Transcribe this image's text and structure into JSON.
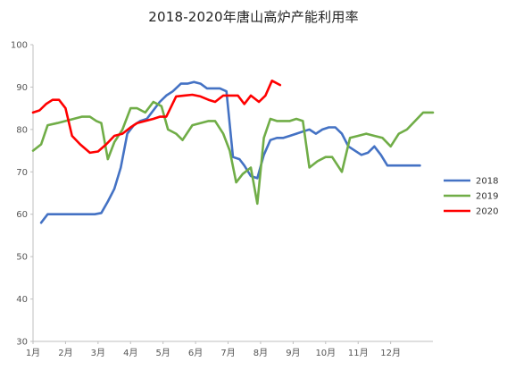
{
  "chart_data": {
    "type": "line",
    "title": "2018-2020年唐山高炉产能利用率",
    "xlabel": "",
    "ylabel": "",
    "ylim": [
      30,
      100
    ],
    "yticks": [
      30,
      40,
      50,
      60,
      70,
      80,
      90,
      100
    ],
    "xlim": [
      1,
      13.3
    ],
    "xticks": [
      1,
      2,
      3,
      4,
      5,
      6,
      7,
      8,
      9,
      10,
      11,
      12
    ],
    "xtick_labels": [
      "1月",
      "2月",
      "3月",
      "4月",
      "5月",
      "6月",
      "7月",
      "8月",
      "9月",
      "10月",
      "11月",
      "12月"
    ],
    "grid": false,
    "legend_position": "right",
    "series": [
      {
        "name": "2018",
        "color": "#4472c4",
        "x": [
          1.25,
          1.45,
          1.7,
          1.95,
          2.2,
          2.45,
          2.7,
          2.9,
          3.1,
          3.3,
          3.5,
          3.7,
          3.9,
          4.1,
          4.3,
          4.5,
          4.7,
          4.9,
          5.1,
          5.3,
          5.55,
          5.75,
          5.95,
          6.15,
          6.35,
          6.55,
          6.75,
          6.95,
          7.15,
          7.35,
          7.5,
          7.7,
          7.9,
          8.1,
          8.3,
          8.5,
          8.7,
          8.9,
          9.1,
          9.3,
          9.5,
          9.7,
          9.9,
          10.1,
          10.3,
          10.5,
          10.7,
          10.9,
          11.1,
          11.3,
          11.5,
          11.7,
          11.9,
          12.1,
          12.3,
          12.5,
          12.7,
          12.9
        ],
        "values": [
          58,
          60,
          60,
          60,
          60,
          60,
          60,
          60,
          60.3,
          63,
          66,
          71,
          79,
          81,
          82,
          82.5,
          84.5,
          86.5,
          88,
          89,
          90.8,
          90.8,
          91.2,
          90.8,
          89.7,
          89.7,
          89.7,
          89,
          73.5,
          73,
          71.5,
          69,
          68.5,
          74,
          77.5,
          78,
          78,
          78.5,
          79,
          79.5,
          80,
          79,
          80,
          80.5,
          80.5,
          79,
          76,
          75,
          74,
          74.5,
          76,
          74,
          71.5,
          71.5,
          71.5,
          71.5,
          71.5,
          71.5
        ]
      },
      {
        "name": "2019",
        "color": "#70ad47",
        "x": [
          1.0,
          1.25,
          1.45,
          1.75,
          2.0,
          2.25,
          2.5,
          2.75,
          2.95,
          3.1,
          3.3,
          3.5,
          3.75,
          4.0,
          4.2,
          4.45,
          4.7,
          4.95,
          5.15,
          5.4,
          5.6,
          5.9,
          6.15,
          6.4,
          6.6,
          6.85,
          7.05,
          7.25,
          7.45,
          7.7,
          7.9,
          8.1,
          8.3,
          8.5,
          8.7,
          8.9,
          9.1,
          9.3,
          9.5,
          9.75,
          10.0,
          10.2,
          10.5,
          10.75,
          11.0,
          11.25,
          11.5,
          11.75,
          12.0,
          12.25,
          12.5,
          12.75,
          13.0,
          13.3
        ],
        "values": [
          75,
          76.5,
          81,
          81.5,
          82,
          82.5,
          83,
          83,
          82,
          81.5,
          73,
          77,
          80,
          85,
          85,
          84,
          86.5,
          85.5,
          80,
          79,
          77.5,
          81,
          81.5,
          82,
          82,
          79,
          75,
          67.5,
          69.5,
          71,
          62.5,
          78,
          82.5,
          82,
          82,
          82,
          82.5,
          82,
          71,
          72.5,
          73.5,
          73.5,
          70,
          78,
          78.5,
          79,
          78.5,
          78,
          76,
          79,
          80,
          82,
          84,
          84
        ]
      },
      {
        "name": "2020",
        "color": "#ff0000",
        "x": [
          1.0,
          1.2,
          1.4,
          1.6,
          1.8,
          2.0,
          2.2,
          2.45,
          2.75,
          3.0,
          3.25,
          3.5,
          3.75,
          4.0,
          4.2,
          4.45,
          4.7,
          4.9,
          5.1,
          5.4,
          5.65,
          5.9,
          6.15,
          6.4,
          6.6,
          6.85,
          7.1,
          7.3,
          7.5,
          7.7,
          7.95,
          8.15,
          8.35,
          8.6
        ],
        "values": [
          84,
          84.5,
          86,
          87,
          87,
          85,
          78.5,
          76.5,
          74.5,
          74.8,
          76.5,
          78.5,
          79,
          80.5,
          81.5,
          82,
          82.5,
          83,
          83,
          87.8,
          88,
          88.2,
          87.8,
          87,
          86.5,
          88,
          88,
          88,
          86,
          88,
          86.5,
          88,
          91.5,
          90.5
        ]
      }
    ]
  }
}
